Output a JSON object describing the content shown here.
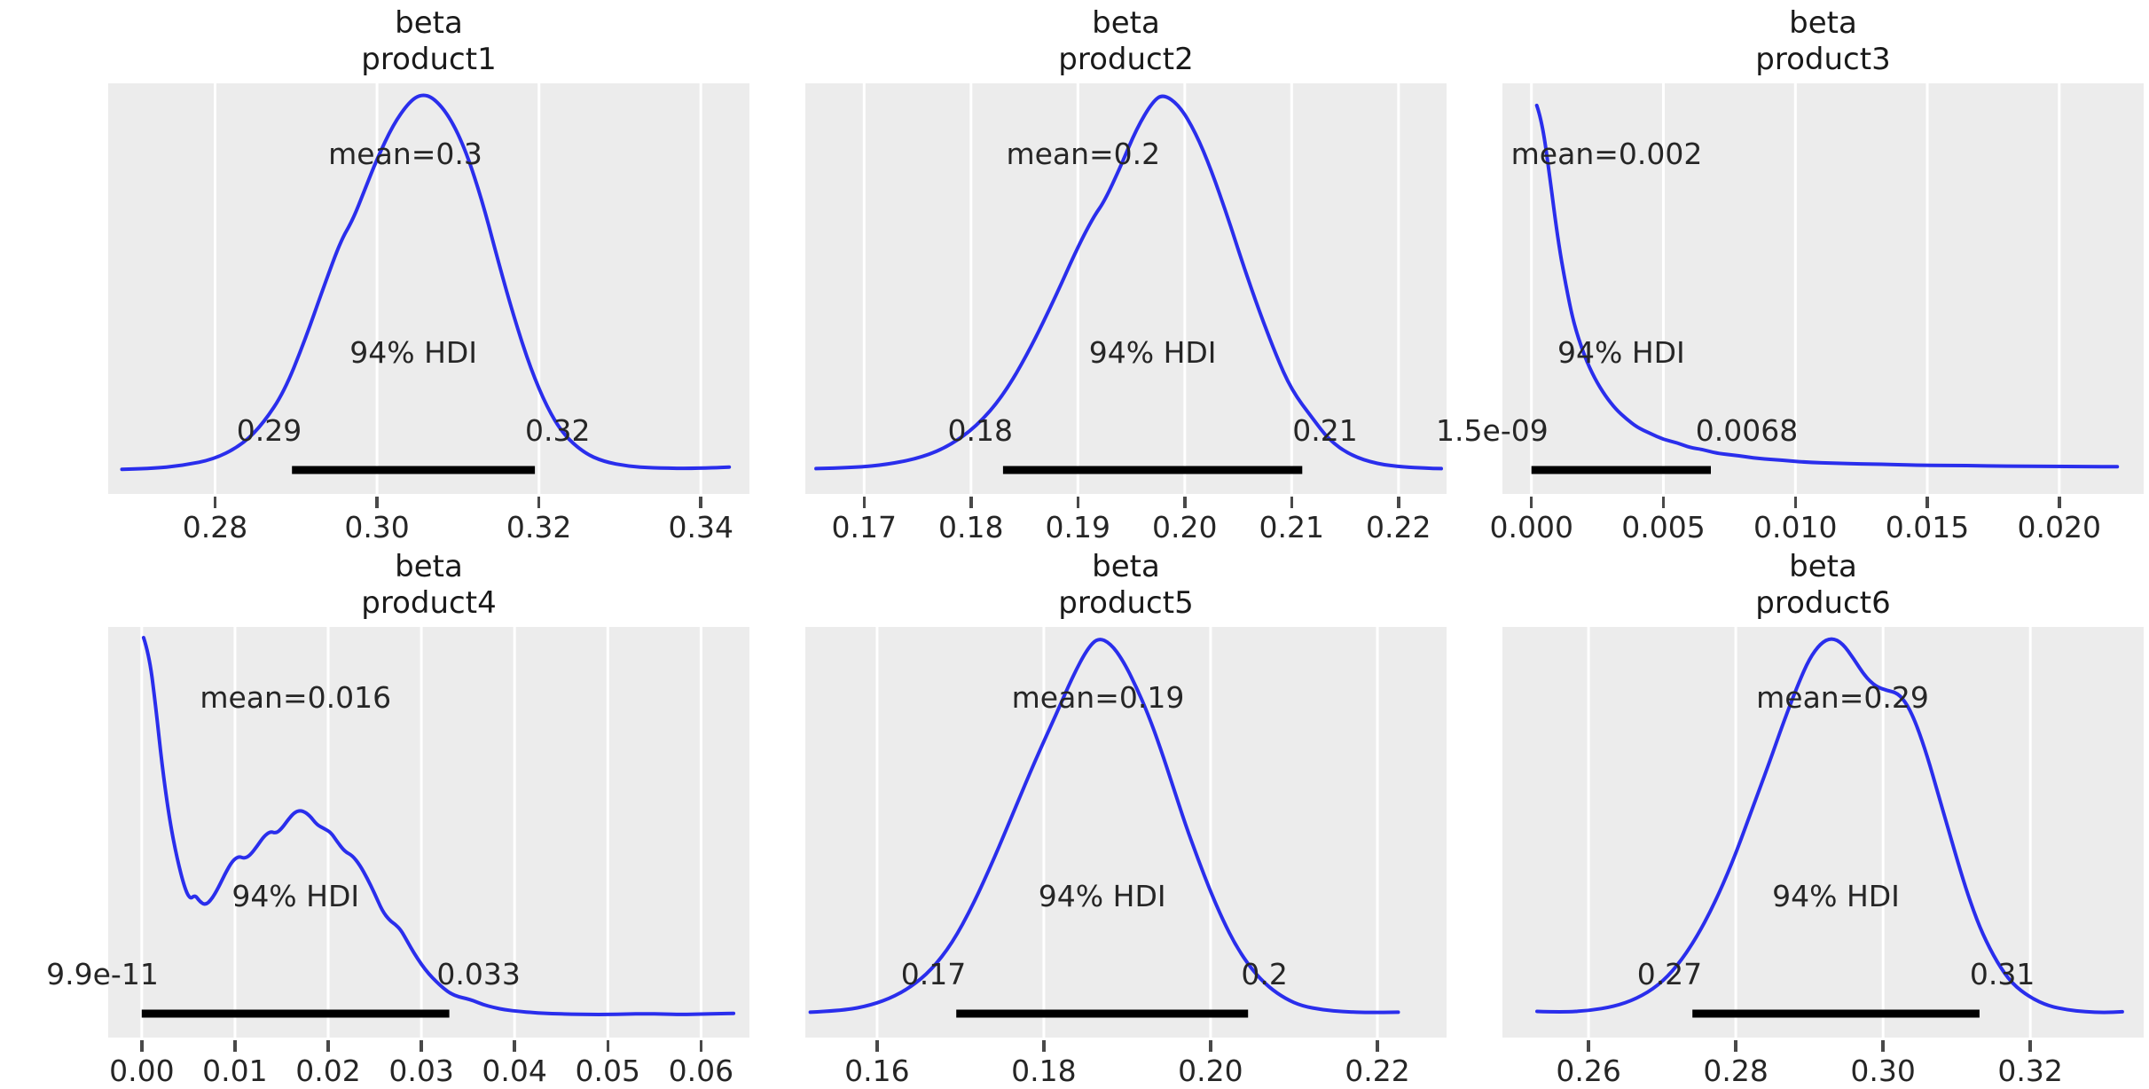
{
  "figure": {
    "kind": "posterior-density-grid",
    "rows": 2,
    "cols": 3,
    "background": "#ffffff"
  },
  "chart_data": {
    "type": "kde",
    "legend_position": "none",
    "grid": "on",
    "hdi_probability_label": "94% HDI",
    "colors": {
      "curve": "#2a2eec",
      "panel_bg": "#ececec",
      "gridline": "#ffffff",
      "hdi_bar": "#000000",
      "text": "#262626"
    },
    "plots": [
      {
        "title_var": "beta",
        "title_coord": "product1",
        "mean_label": "mean=0.3",
        "mean_x": 0.3035,
        "hdi_text": "94% HDI",
        "hdi_lower_label": "0.29",
        "hdi_upper_label": "0.32",
        "hdi": [
          0.2895,
          0.3195
        ],
        "xlim": [
          0.2668,
          0.346
        ],
        "xticks": [
          {
            "value": 0.28,
            "label": "0.28"
          },
          {
            "value": 0.3,
            "label": "0.30"
          },
          {
            "value": 0.32,
            "label": "0.32"
          },
          {
            "value": 0.34,
            "label": "0.34"
          }
        ],
        "curve": [
          [
            0.2685,
            0.018
          ],
          [
            0.272,
            0.02
          ],
          [
            0.276,
            0.028
          ],
          [
            0.28,
            0.045
          ],
          [
            0.2835,
            0.085
          ],
          [
            0.286,
            0.14
          ],
          [
            0.2885,
            0.22
          ],
          [
            0.291,
            0.35
          ],
          [
            0.2935,
            0.5
          ],
          [
            0.2955,
            0.615
          ],
          [
            0.297,
            0.67
          ],
          [
            0.2985,
            0.75
          ],
          [
            0.3,
            0.83
          ],
          [
            0.302,
            0.92
          ],
          [
            0.304,
            0.98
          ],
          [
            0.3055,
            1.0
          ],
          [
            0.307,
            0.99
          ],
          [
            0.309,
            0.94
          ],
          [
            0.311,
            0.85
          ],
          [
            0.313,
            0.72
          ],
          [
            0.315,
            0.56
          ],
          [
            0.317,
            0.41
          ],
          [
            0.319,
            0.28
          ],
          [
            0.321,
            0.18
          ],
          [
            0.323,
            0.11
          ],
          [
            0.3255,
            0.062
          ],
          [
            0.328,
            0.038
          ],
          [
            0.331,
            0.026
          ],
          [
            0.334,
            0.022
          ],
          [
            0.338,
            0.02
          ],
          [
            0.3415,
            0.022
          ],
          [
            0.3435,
            0.024
          ]
        ]
      },
      {
        "title_var": "beta",
        "title_coord": "product2",
        "mean_label": "mean=0.2",
        "mean_x": 0.1905,
        "hdi_text": "94% HDI",
        "hdi_lower_label": "0.18",
        "hdi_upper_label": "0.21",
        "hdi": [
          0.183,
          0.211
        ],
        "xlim": [
          0.1645,
          0.2245
        ],
        "xticks": [
          {
            "value": 0.17,
            "label": "0.17"
          },
          {
            "value": 0.18,
            "label": "0.18"
          },
          {
            "value": 0.19,
            "label": "0.19"
          },
          {
            "value": 0.2,
            "label": "0.20"
          },
          {
            "value": 0.21,
            "label": "0.21"
          },
          {
            "value": 0.22,
            "label": "0.22"
          }
        ],
        "curve": [
          [
            0.1655,
            0.02
          ],
          [
            0.169,
            0.022
          ],
          [
            0.1725,
            0.032
          ],
          [
            0.1755,
            0.05
          ],
          [
            0.178,
            0.08
          ],
          [
            0.1805,
            0.13
          ],
          [
            0.183,
            0.21
          ],
          [
            0.1855,
            0.33
          ],
          [
            0.188,
            0.475
          ],
          [
            0.19,
            0.6
          ],
          [
            0.1915,
            0.68
          ],
          [
            0.1925,
            0.72
          ],
          [
            0.194,
            0.81
          ],
          [
            0.1955,
            0.91
          ],
          [
            0.197,
            0.98
          ],
          [
            0.198,
            1.0
          ],
          [
            0.1995,
            0.97
          ],
          [
            0.201,
            0.9
          ],
          [
            0.2025,
            0.8
          ],
          [
            0.204,
            0.68
          ],
          [
            0.2055,
            0.55
          ],
          [
            0.207,
            0.43
          ],
          [
            0.2085,
            0.32
          ],
          [
            0.21,
            0.225
          ],
          [
            0.212,
            0.15
          ],
          [
            0.2135,
            0.095
          ],
          [
            0.2155,
            0.055
          ],
          [
            0.218,
            0.032
          ],
          [
            0.2205,
            0.024
          ],
          [
            0.2225,
            0.021
          ],
          [
            0.224,
            0.02
          ]
        ]
      },
      {
        "title_var": "beta",
        "title_coord": "product3",
        "mean_label": "mean=0.002",
        "mean_x": 0.00285,
        "hdi_text": "94% HDI",
        "hdi_lower_label": "1.5e-09",
        "hdi_upper_label": "0.0068",
        "hdi": [
          0.0,
          0.0068
        ],
        "xlim": [
          -0.0011,
          0.0232
        ],
        "xticks": [
          {
            "value": 0.0,
            "label": "0.000"
          },
          {
            "value": 0.005,
            "label": "0.005"
          },
          {
            "value": 0.01,
            "label": "0.010"
          },
          {
            "value": 0.015,
            "label": "0.015"
          },
          {
            "value": 0.02,
            "label": "0.020"
          }
        ],
        "curve": [
          [
            0.0002,
            0.97
          ],
          [
            0.0004,
            0.93
          ],
          [
            0.0007,
            0.78
          ],
          [
            0.001,
            0.62
          ],
          [
            0.0013,
            0.5
          ],
          [
            0.0016,
            0.4
          ],
          [
            0.002,
            0.315
          ],
          [
            0.0024,
            0.255
          ],
          [
            0.0028,
            0.21
          ],
          [
            0.0032,
            0.175
          ],
          [
            0.0036,
            0.15
          ],
          [
            0.004,
            0.128
          ],
          [
            0.0045,
            0.112
          ],
          [
            0.005,
            0.096
          ],
          [
            0.0055,
            0.088
          ],
          [
            0.006,
            0.075
          ],
          [
            0.0065,
            0.07
          ],
          [
            0.007,
            0.06
          ],
          [
            0.0078,
            0.054
          ],
          [
            0.0086,
            0.046
          ],
          [
            0.0095,
            0.042
          ],
          [
            0.0105,
            0.036
          ],
          [
            0.0115,
            0.034
          ],
          [
            0.0125,
            0.032
          ],
          [
            0.0135,
            0.031
          ],
          [
            0.015,
            0.028
          ],
          [
            0.0165,
            0.028
          ],
          [
            0.018,
            0.026
          ],
          [
            0.0195,
            0.026
          ],
          [
            0.021,
            0.025
          ],
          [
            0.0222,
            0.025
          ]
        ]
      },
      {
        "title_var": "beta",
        "title_coord": "product4",
        "mean_label": "mean=0.016",
        "mean_x": 0.0165,
        "hdi_text": "94% HDI",
        "hdi_lower_label": "9.9e-11",
        "hdi_upper_label": "0.033",
        "hdi": [
          0.0,
          0.033
        ],
        "xlim": [
          -0.0036,
          0.0652
        ],
        "xticks": [
          {
            "value": 0.0,
            "label": "0.00"
          },
          {
            "value": 0.01,
            "label": "0.01"
          },
          {
            "value": 0.02,
            "label": "0.02"
          },
          {
            "value": 0.03,
            "label": "0.03"
          },
          {
            "value": 0.04,
            "label": "0.04"
          },
          {
            "value": 0.05,
            "label": "0.05"
          },
          {
            "value": 0.06,
            "label": "0.06"
          }
        ],
        "curve": [
          [
            0.0002,
            1.0
          ],
          [
            0.0008,
            0.955
          ],
          [
            0.0015,
            0.82
          ],
          [
            0.0022,
            0.66
          ],
          [
            0.003,
            0.52
          ],
          [
            0.0038,
            0.42
          ],
          [
            0.0046,
            0.345
          ],
          [
            0.0052,
            0.315
          ],
          [
            0.0057,
            0.327
          ],
          [
            0.0062,
            0.31
          ],
          [
            0.0068,
            0.3
          ],
          [
            0.0075,
            0.315
          ],
          [
            0.0082,
            0.345
          ],
          [
            0.009,
            0.385
          ],
          [
            0.0097,
            0.415
          ],
          [
            0.0104,
            0.428
          ],
          [
            0.011,
            0.422
          ],
          [
            0.0116,
            0.43
          ],
          [
            0.0124,
            0.455
          ],
          [
            0.0131,
            0.48
          ],
          [
            0.0138,
            0.493
          ],
          [
            0.0144,
            0.488
          ],
          [
            0.015,
            0.5
          ],
          [
            0.0158,
            0.527
          ],
          [
            0.0165,
            0.545
          ],
          [
            0.0172,
            0.548
          ],
          [
            0.018,
            0.535
          ],
          [
            0.0188,
            0.51
          ],
          [
            0.0196,
            0.5
          ],
          [
            0.0203,
            0.49
          ],
          [
            0.021,
            0.465
          ],
          [
            0.0218,
            0.44
          ],
          [
            0.0226,
            0.43
          ],
          [
            0.0234,
            0.405
          ],
          [
            0.0242,
            0.37
          ],
          [
            0.025,
            0.33
          ],
          [
            0.0258,
            0.285
          ],
          [
            0.0266,
            0.26
          ],
          [
            0.0272,
            0.25
          ],
          [
            0.0278,
            0.235
          ],
          [
            0.0285,
            0.205
          ],
          [
            0.0292,
            0.175
          ],
          [
            0.03,
            0.145
          ],
          [
            0.0308,
            0.12
          ],
          [
            0.0316,
            0.1
          ],
          [
            0.0324,
            0.082
          ],
          [
            0.0332,
            0.068
          ],
          [
            0.034,
            0.06
          ],
          [
            0.0348,
            0.056
          ],
          [
            0.0356,
            0.05
          ],
          [
            0.0366,
            0.04
          ],
          [
            0.0378,
            0.032
          ],
          [
            0.039,
            0.026
          ],
          [
            0.0405,
            0.022
          ],
          [
            0.042,
            0.019
          ],
          [
            0.044,
            0.016
          ],
          [
            0.046,
            0.015
          ],
          [
            0.048,
            0.014
          ],
          [
            0.05,
            0.014
          ],
          [
            0.052,
            0.015
          ],
          [
            0.054,
            0.016
          ],
          [
            0.056,
            0.015
          ],
          [
            0.058,
            0.014
          ],
          [
            0.06,
            0.015
          ],
          [
            0.062,
            0.016
          ],
          [
            0.0635,
            0.017
          ]
        ]
      },
      {
        "title_var": "beta",
        "title_coord": "product5",
        "mean_label": "mean=0.19",
        "mean_x": 0.1865,
        "hdi_text": "94% HDI",
        "hdi_lower_label": "0.17",
        "hdi_upper_label": "0.2",
        "hdi": [
          0.1695,
          0.2045
        ],
        "xlim": [
          0.1514,
          0.2283
        ],
        "xticks": [
          {
            "value": 0.16,
            "label": "0.16"
          },
          {
            "value": 0.18,
            "label": "0.18"
          },
          {
            "value": 0.2,
            "label": "0.20"
          },
          {
            "value": 0.22,
            "label": "0.22"
          }
        ],
        "curve": [
          [
            0.152,
            0.02
          ],
          [
            0.1555,
            0.024
          ],
          [
            0.1585,
            0.034
          ],
          [
            0.1615,
            0.055
          ],
          [
            0.164,
            0.085
          ],
          [
            0.1665,
            0.13
          ],
          [
            0.169,
            0.2
          ],
          [
            0.1715,
            0.3
          ],
          [
            0.174,
            0.42
          ],
          [
            0.1765,
            0.55
          ],
          [
            0.179,
            0.68
          ],
          [
            0.1815,
            0.8
          ],
          [
            0.1835,
            0.9
          ],
          [
            0.1852,
            0.97
          ],
          [
            0.1865,
            1.0
          ],
          [
            0.188,
            0.985
          ],
          [
            0.1895,
            0.94
          ],
          [
            0.191,
            0.875
          ],
          [
            0.1925,
            0.8
          ],
          [
            0.194,
            0.71
          ],
          [
            0.1955,
            0.61
          ],
          [
            0.197,
            0.51
          ],
          [
            0.1985,
            0.42
          ],
          [
            0.2,
            0.335
          ],
          [
            0.2015,
            0.26
          ],
          [
            0.203,
            0.195
          ],
          [
            0.205,
            0.13
          ],
          [
            0.207,
            0.085
          ],
          [
            0.209,
            0.055
          ],
          [
            0.211,
            0.036
          ],
          [
            0.2135,
            0.026
          ],
          [
            0.216,
            0.021
          ],
          [
            0.219,
            0.019
          ],
          [
            0.2225,
            0.02
          ]
        ]
      },
      {
        "title_var": "beta",
        "title_coord": "product6",
        "mean_label": "mean=0.29",
        "mean_x": 0.2945,
        "hdi_text": "94% HDI",
        "hdi_lower_label": "0.27",
        "hdi_upper_label": "0.31",
        "hdi": [
          0.2741,
          0.3131
        ],
        "xlim": [
          0.2483,
          0.3354
        ],
        "xticks": [
          {
            "value": 0.26,
            "label": "0.26"
          },
          {
            "value": 0.28,
            "label": "0.28"
          },
          {
            "value": 0.3,
            "label": "0.30"
          },
          {
            "value": 0.32,
            "label": "0.32"
          }
        ],
        "curve": [
          [
            0.253,
            0.022
          ],
          [
            0.2565,
            0.02
          ],
          [
            0.26,
            0.024
          ],
          [
            0.2635,
            0.035
          ],
          [
            0.2665,
            0.055
          ],
          [
            0.2695,
            0.09
          ],
          [
            0.272,
            0.14
          ],
          [
            0.2745,
            0.21
          ],
          [
            0.277,
            0.3
          ],
          [
            0.2795,
            0.41
          ],
          [
            0.282,
            0.54
          ],
          [
            0.2845,
            0.67
          ],
          [
            0.2865,
            0.78
          ],
          [
            0.2885,
            0.88
          ],
          [
            0.29,
            0.945
          ],
          [
            0.2915,
            0.985
          ],
          [
            0.293,
            1.0
          ],
          [
            0.2945,
            0.985
          ],
          [
            0.296,
            0.945
          ],
          [
            0.2975,
            0.9
          ],
          [
            0.299,
            0.872
          ],
          [
            0.3005,
            0.862
          ],
          [
            0.302,
            0.855
          ],
          [
            0.3033,
            0.825
          ],
          [
            0.3046,
            0.77
          ],
          [
            0.306,
            0.69
          ],
          [
            0.3075,
            0.59
          ],
          [
            0.309,
            0.49
          ],
          [
            0.3105,
            0.39
          ],
          [
            0.312,
            0.3
          ],
          [
            0.3135,
            0.225
          ],
          [
            0.3155,
            0.15
          ],
          [
            0.3175,
            0.095
          ],
          [
            0.32,
            0.058
          ],
          [
            0.3225,
            0.036
          ],
          [
            0.325,
            0.026
          ],
          [
            0.3275,
            0.021
          ],
          [
            0.33,
            0.019
          ],
          [
            0.3325,
            0.021
          ]
        ]
      }
    ]
  }
}
